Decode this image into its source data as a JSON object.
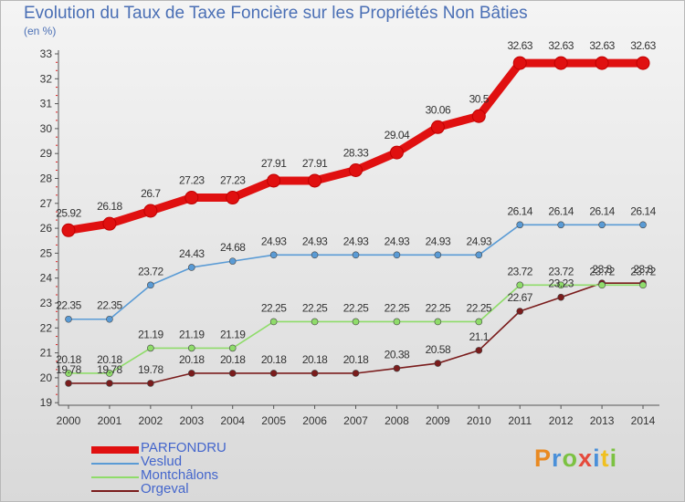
{
  "title": "Evolution du Taux de Taxe Foncière sur les Propriétés Non Bâties",
  "subtitle": "(en %)",
  "logo": {
    "text": "Proxiti",
    "colors": [
      "#e98a22",
      "#4a90d9",
      "#7cc242",
      "#e54a3c",
      "#4a90d9",
      "#f0c020",
      "#7cc242"
    ]
  },
  "chart_data": {
    "type": "line",
    "x": [
      "2000",
      "2001",
      "2002",
      "2003",
      "2004",
      "2005",
      "2006",
      "2007",
      "2008",
      "2009",
      "2010",
      "2011",
      "2012",
      "2013",
      "2014"
    ],
    "ylim": [
      19,
      33
    ],
    "yticks": [
      "19",
      "20",
      "21",
      "22",
      "23",
      "24",
      "25",
      "26",
      "27",
      "28",
      "29",
      "30",
      "31",
      "32",
      "33"
    ],
    "grid": false,
    "legend_position": "bottom-left",
    "series": [
      {
        "name": "PARFONDRU",
        "color": "#e01010",
        "values": [
          25.92,
          26.18,
          26.7,
          27.23,
          27.23,
          27.91,
          27.91,
          28.33,
          29.04,
          30.06,
          30.5,
          32.63,
          32.63,
          32.63,
          32.63
        ],
        "labels": [
          "25.92",
          "26.18",
          "26.7",
          "27.23",
          "27.23",
          "27.91",
          "27.91",
          "28.33",
          "29.04",
          "30.06",
          "30.5",
          "32.63",
          "32.63",
          "32.63",
          "32.63"
        ]
      },
      {
        "name": "Veslud",
        "color": "#5a9bd5",
        "values": [
          22.35,
          22.35,
          23.72,
          24.43,
          24.68,
          24.93,
          24.93,
          24.93,
          24.93,
          24.93,
          24.93,
          26.14,
          26.14,
          26.14,
          26.14
        ],
        "labels": [
          "22.35",
          "22.35",
          "23.72",
          "24.43",
          "24.68",
          "24.93",
          "24.93",
          "24.93",
          "24.93",
          "24.93",
          "24.93",
          "26.14",
          "26.14",
          "26.14",
          "26.14"
        ]
      },
      {
        "name": "Montchâlons",
        "color": "#8fdc6a",
        "values": [
          20.18,
          20.18,
          21.19,
          21.19,
          21.19,
          22.25,
          22.25,
          22.25,
          22.25,
          22.25,
          22.25,
          23.72,
          23.72,
          23.72,
          23.72
        ],
        "labels": [
          "20.18",
          "20.18",
          "21.19",
          "21.19",
          "21.19",
          "22.25",
          "22.25",
          "22.25",
          "22.25",
          "22.25",
          "22.25",
          "23.72",
          "23.72",
          "23.72",
          "23.72"
        ]
      },
      {
        "name": "Orgeval",
        "color": "#7a1c1c",
        "values": [
          19.78,
          19.78,
          19.78,
          20.18,
          20.18,
          20.18,
          20.18,
          20.18,
          20.38,
          20.58,
          21.1,
          22.67,
          23.23,
          23.8,
          23.8
        ],
        "labels": [
          "19.78",
          "19.78",
          "19.78",
          "20.18",
          "20.18",
          "20.18",
          "20.18",
          "20.18",
          "20.38",
          "20.58",
          "21.1",
          "22.67",
          "23.23",
          "23.8",
          "23.8"
        ]
      }
    ]
  }
}
